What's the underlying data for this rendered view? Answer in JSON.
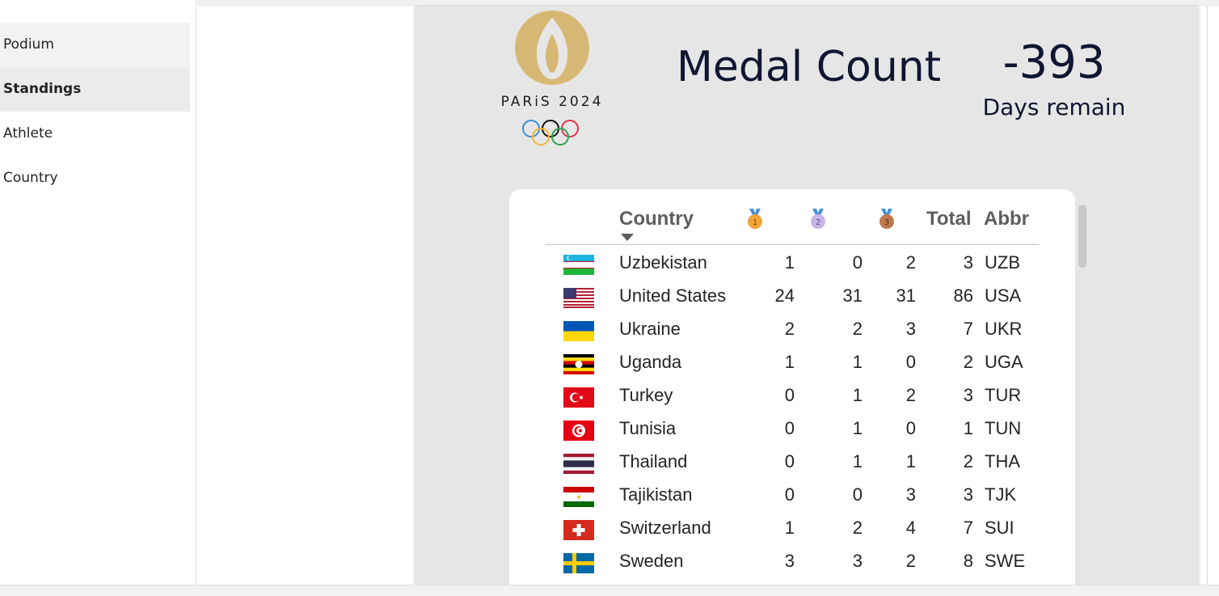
{
  "nav": {
    "items": [
      {
        "label": "Podium",
        "state": "hover"
      },
      {
        "label": "Standings",
        "state": "selected"
      },
      {
        "label": "Athlete",
        "state": ""
      },
      {
        "label": "Country",
        "state": ""
      }
    ]
  },
  "report": {
    "logo": {
      "text": "PARiS 2024",
      "icon": "paris-2024-olympic-logo"
    },
    "title": "Medal Count",
    "days_value": "-393",
    "days_label": "Days remain"
  },
  "table": {
    "columns": {
      "country": "Country",
      "gold_icon": "gold-medal-icon",
      "silver_icon": "silver-medal-icon",
      "bronze_icon": "bronze-medal-icon",
      "total": "Total",
      "abbr": "Abbr"
    },
    "sort_indicator": "sort-descending-icon",
    "rows": [
      {
        "country": "Uzbekistan",
        "gold": "1",
        "silver": "0",
        "bronze": "2",
        "total": "3",
        "abbr": "UZB",
        "flag": "uzbekistan-flag"
      },
      {
        "country": "United States",
        "gold": "24",
        "silver": "31",
        "bronze": "31",
        "total": "86",
        "abbr": "USA",
        "flag": "united-states-flag"
      },
      {
        "country": "Ukraine",
        "gold": "2",
        "silver": "2",
        "bronze": "3",
        "total": "7",
        "abbr": "UKR",
        "flag": "ukraine-flag"
      },
      {
        "country": "Uganda",
        "gold": "1",
        "silver": "1",
        "bronze": "0",
        "total": "2",
        "abbr": "UGA",
        "flag": "uganda-flag"
      },
      {
        "country": "Turkey",
        "gold": "0",
        "silver": "1",
        "bronze": "2",
        "total": "3",
        "abbr": "TUR",
        "flag": "turkey-flag"
      },
      {
        "country": "Tunisia",
        "gold": "0",
        "silver": "1",
        "bronze": "0",
        "total": "1",
        "abbr": "TUN",
        "flag": "tunisia-flag"
      },
      {
        "country": "Thailand",
        "gold": "0",
        "silver": "1",
        "bronze": "1",
        "total": "2",
        "abbr": "THA",
        "flag": "thailand-flag"
      },
      {
        "country": "Tajikistan",
        "gold": "0",
        "silver": "0",
        "bronze": "3",
        "total": "3",
        "abbr": "TJK",
        "flag": "tajikistan-flag"
      },
      {
        "country": "Switzerland",
        "gold": "1",
        "silver": "2",
        "bronze": "4",
        "total": "7",
        "abbr": "SUI",
        "flag": "switzerland-flag"
      },
      {
        "country": "Sweden",
        "gold": "3",
        "silver": "3",
        "bronze": "2",
        "total": "8",
        "abbr": "SWE",
        "flag": "sweden-flag"
      }
    ]
  },
  "colors": {
    "canvas_bg": "#e6e6e6",
    "title_text": "#101631",
    "logo_gold": "#d6b874",
    "gold_medal": "#f2a33a",
    "silver_medal": "#c8b4e6",
    "bronze_medal": "#c07850",
    "ribbon_blue": "#4a90d9"
  }
}
